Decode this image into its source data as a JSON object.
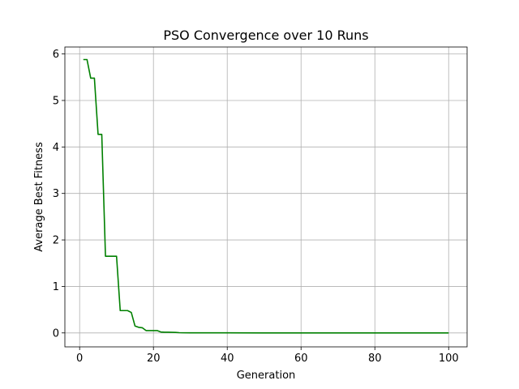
{
  "chart_data": {
    "type": "line",
    "title": "PSO Convergence over 10 Runs",
    "xlabel": "Generation",
    "ylabel": "Average Best Fitness",
    "xlim": [
      -4,
      105
    ],
    "ylim": [
      -0.3,
      6.15
    ],
    "xticks": [
      0,
      20,
      40,
      60,
      80,
      100
    ],
    "yticks": [
      0,
      1,
      2,
      3,
      4,
      5,
      6
    ],
    "grid": true,
    "series": [
      {
        "color": "#008000",
        "x": [
          1,
          2,
          3,
          4,
          5,
          6,
          7,
          8,
          9,
          10,
          11,
          12,
          13,
          14,
          15,
          16,
          17,
          18,
          19,
          20,
          21,
          22,
          23,
          24,
          25,
          26,
          27,
          28,
          30,
          40,
          50,
          60,
          70,
          80,
          90,
          100
        ],
        "y": [
          5.88,
          5.88,
          5.48,
          5.48,
          4.27,
          4.27,
          1.65,
          1.65,
          1.65,
          1.65,
          0.48,
          0.48,
          0.48,
          0.44,
          0.15,
          0.12,
          0.11,
          0.05,
          0.05,
          0.05,
          0.05,
          0.02,
          0.015,
          0.015,
          0.012,
          0.01,
          0.005,
          0.003,
          0.002,
          0.001,
          0.0,
          0.0,
          0.0,
          0.0,
          0.0,
          0.0
        ]
      }
    ]
  }
}
